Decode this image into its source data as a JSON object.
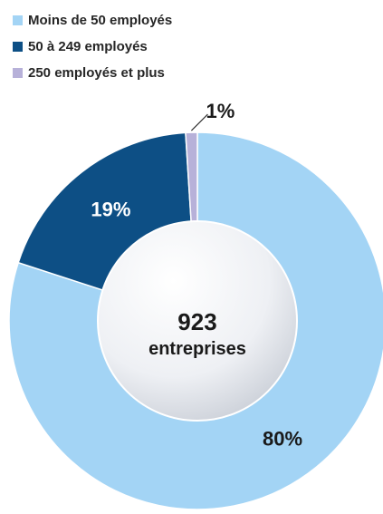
{
  "chart_data": {
    "type": "pie",
    "style": "donut",
    "title": "",
    "legend_position": "top-left",
    "categories": [
      "Moins de 50 employés",
      "50 à 249 employés",
      "250 employés et plus"
    ],
    "values": [
      80,
      19,
      1
    ],
    "labels": [
      "80%",
      "19%",
      "1%"
    ],
    "colors": [
      "#a3d4f5",
      "#0d4f85",
      "#b7b1d9"
    ],
    "label_colors": [
      "#1a1a1a",
      "#ffffff",
      "#1a1a1a"
    ],
    "center_text": {
      "value": "923",
      "caption": "entreprises"
    }
  }
}
